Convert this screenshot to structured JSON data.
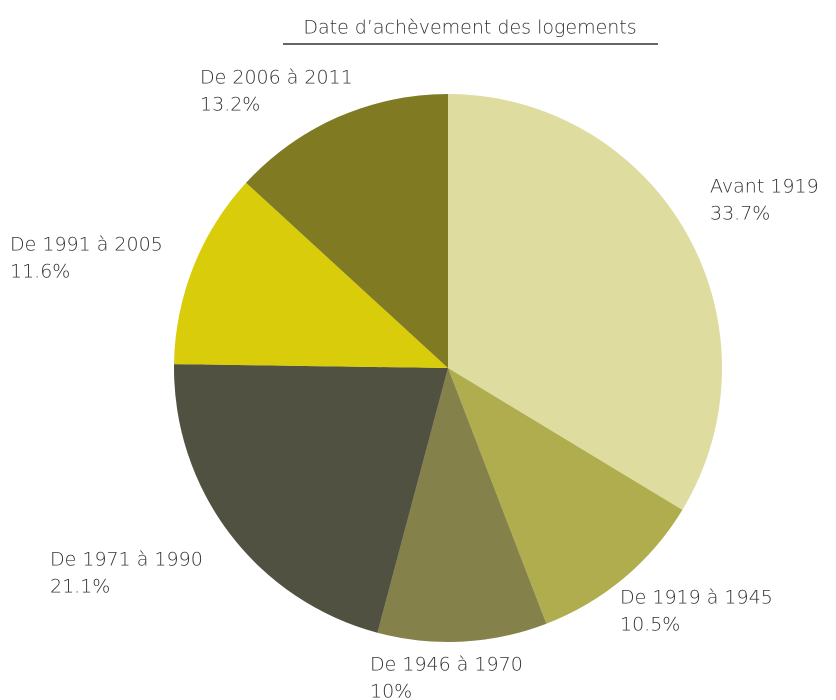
{
  "chart_data": {
    "type": "pie",
    "title": "Date d’achèvement des logements",
    "categories": [
      "Avant 1919",
      "De 1919 à 1945",
      "De 1946 à 1970",
      "De 1971 à 1990",
      "De 1991 à 2005",
      "De 2006 à 2011"
    ],
    "values": [
      33.7,
      10.5,
      10,
      21.1,
      11.6,
      13.2
    ],
    "value_labels": [
      "33.7%",
      "10.5%",
      "10%",
      "21.1%",
      "11.6%",
      "13.2%"
    ],
    "colors": [
      "#dfdc9f",
      "#b0ad4f",
      "#85814a",
      "#515142",
      "#d8cc0b",
      "#807a22"
    ]
  }
}
